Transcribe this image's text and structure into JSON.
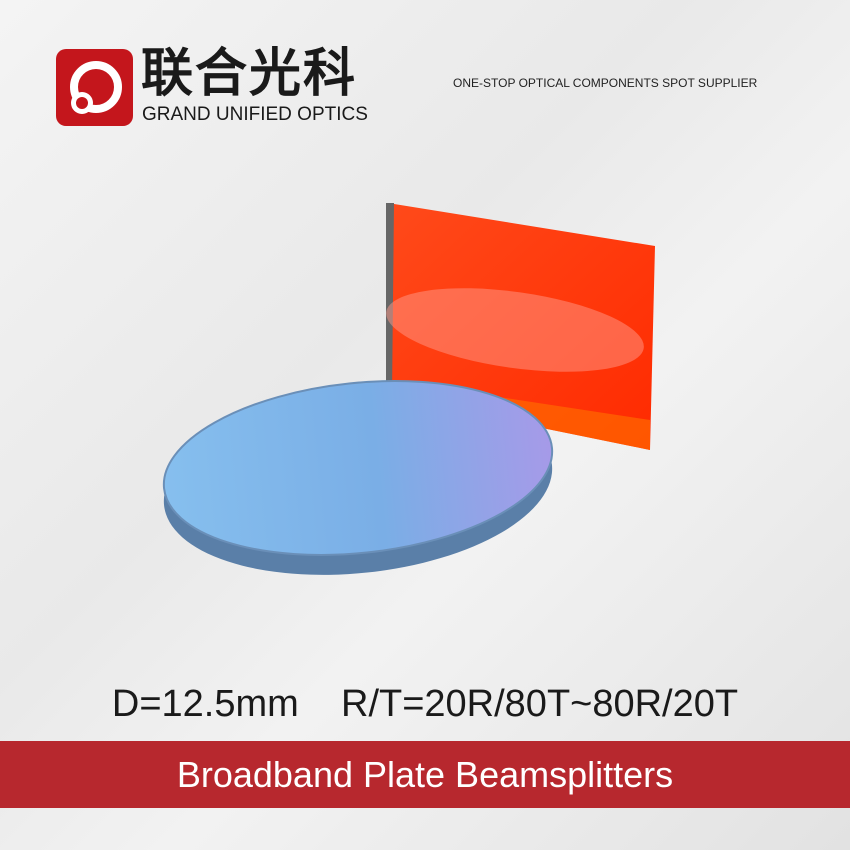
{
  "brand": {
    "name_cn": "联合光科",
    "name_en": "GRAND UNIFIED OPTICS",
    "tagline": "ONE-STOP OPTICAL COMPONENTS SPOT SUPPLIER",
    "color": "#c4161c"
  },
  "product": {
    "specs": "D=12.5mm    R/T=20R/80T~80R/20T",
    "title": "Broadband Plate Beamsplitters",
    "banner_color": "#b7282e",
    "plate_colors": {
      "round": "#7fb6e6",
      "square": "#ff3a10"
    }
  }
}
